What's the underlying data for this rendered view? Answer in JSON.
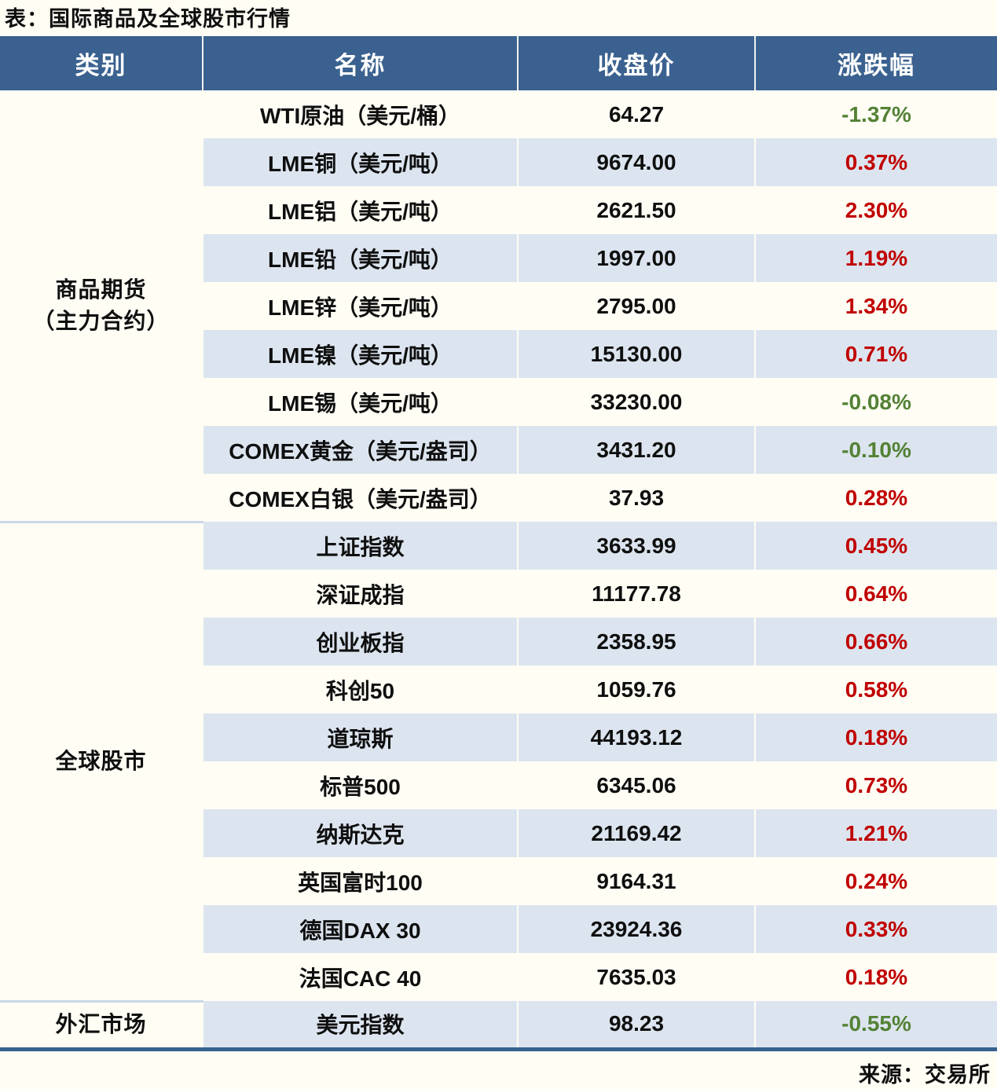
{
  "page": {
    "title": "表：国际商品及全球股市行情",
    "source": "来源：交易所"
  },
  "colors": {
    "header_bg": "#3a618f",
    "stripe_bg": "#dce5ef",
    "up_red": "#c00000",
    "down_green": "#538135",
    "paper": "#fffdf4",
    "section_separator": "#c9d8e8",
    "bottom_border": "#37618e"
  },
  "table": {
    "columns": [
      "类别",
      "名称",
      "收盘价",
      "涨跌幅"
    ],
    "categories": [
      {
        "label": "商品期货",
        "label2": "（主力合约）",
        "span": 9
      },
      {
        "label": "全球股市",
        "label2": "",
        "span": 10
      },
      {
        "label": "外汇市场",
        "label2": "",
        "span": 1
      }
    ],
    "rows": [
      {
        "name": "WTI原油（美元/桶）",
        "close": "64.27",
        "change": "-1.37%",
        "direction": "down"
      },
      {
        "name": "LME铜（美元/吨）",
        "close": "9674.00",
        "change": "0.37%",
        "direction": "up"
      },
      {
        "name": "LME铝（美元/吨）",
        "close": "2621.50",
        "change": "2.30%",
        "direction": "up"
      },
      {
        "name": "LME铅（美元/吨）",
        "close": "1997.00",
        "change": "1.19%",
        "direction": "up"
      },
      {
        "name": "LME锌（美元/吨）",
        "close": "2795.00",
        "change": "1.34%",
        "direction": "up"
      },
      {
        "name": "LME镍（美元/吨）",
        "close": "15130.00",
        "change": "0.71%",
        "direction": "up"
      },
      {
        "name": "LME锡（美元/吨）",
        "close": "33230.00",
        "change": "-0.08%",
        "direction": "down"
      },
      {
        "name": "COMEX黄金（美元/盎司）",
        "close": "3431.20",
        "change": "-0.10%",
        "direction": "down"
      },
      {
        "name": "COMEX白银（美元/盎司）",
        "close": "37.93",
        "change": "0.28%",
        "direction": "up"
      },
      {
        "name": "上证指数",
        "close": "3633.99",
        "change": "0.45%",
        "direction": "up"
      },
      {
        "name": "深证成指",
        "close": "11177.78",
        "change": "0.64%",
        "direction": "up"
      },
      {
        "name": "创业板指",
        "close": "2358.95",
        "change": "0.66%",
        "direction": "up"
      },
      {
        "name": "科创50",
        "close": "1059.76",
        "change": "0.58%",
        "direction": "up"
      },
      {
        "name": "道琼斯",
        "close": "44193.12",
        "change": "0.18%",
        "direction": "up"
      },
      {
        "name": "标普500",
        "close": "6345.06",
        "change": "0.73%",
        "direction": "up"
      },
      {
        "name": "纳斯达克",
        "close": "21169.42",
        "change": "1.21%",
        "direction": "up"
      },
      {
        "name": "英国富时100",
        "close": "9164.31",
        "change": "0.24%",
        "direction": "up"
      },
      {
        "name": "德国DAX 30",
        "close": "23924.36",
        "change": "0.33%",
        "direction": "up"
      },
      {
        "name": "法国CAC 40",
        "close": "7635.03",
        "change": "0.18%",
        "direction": "up"
      },
      {
        "name": "美元指数",
        "close": "98.23",
        "change": "-0.55%",
        "direction": "down"
      }
    ]
  }
}
